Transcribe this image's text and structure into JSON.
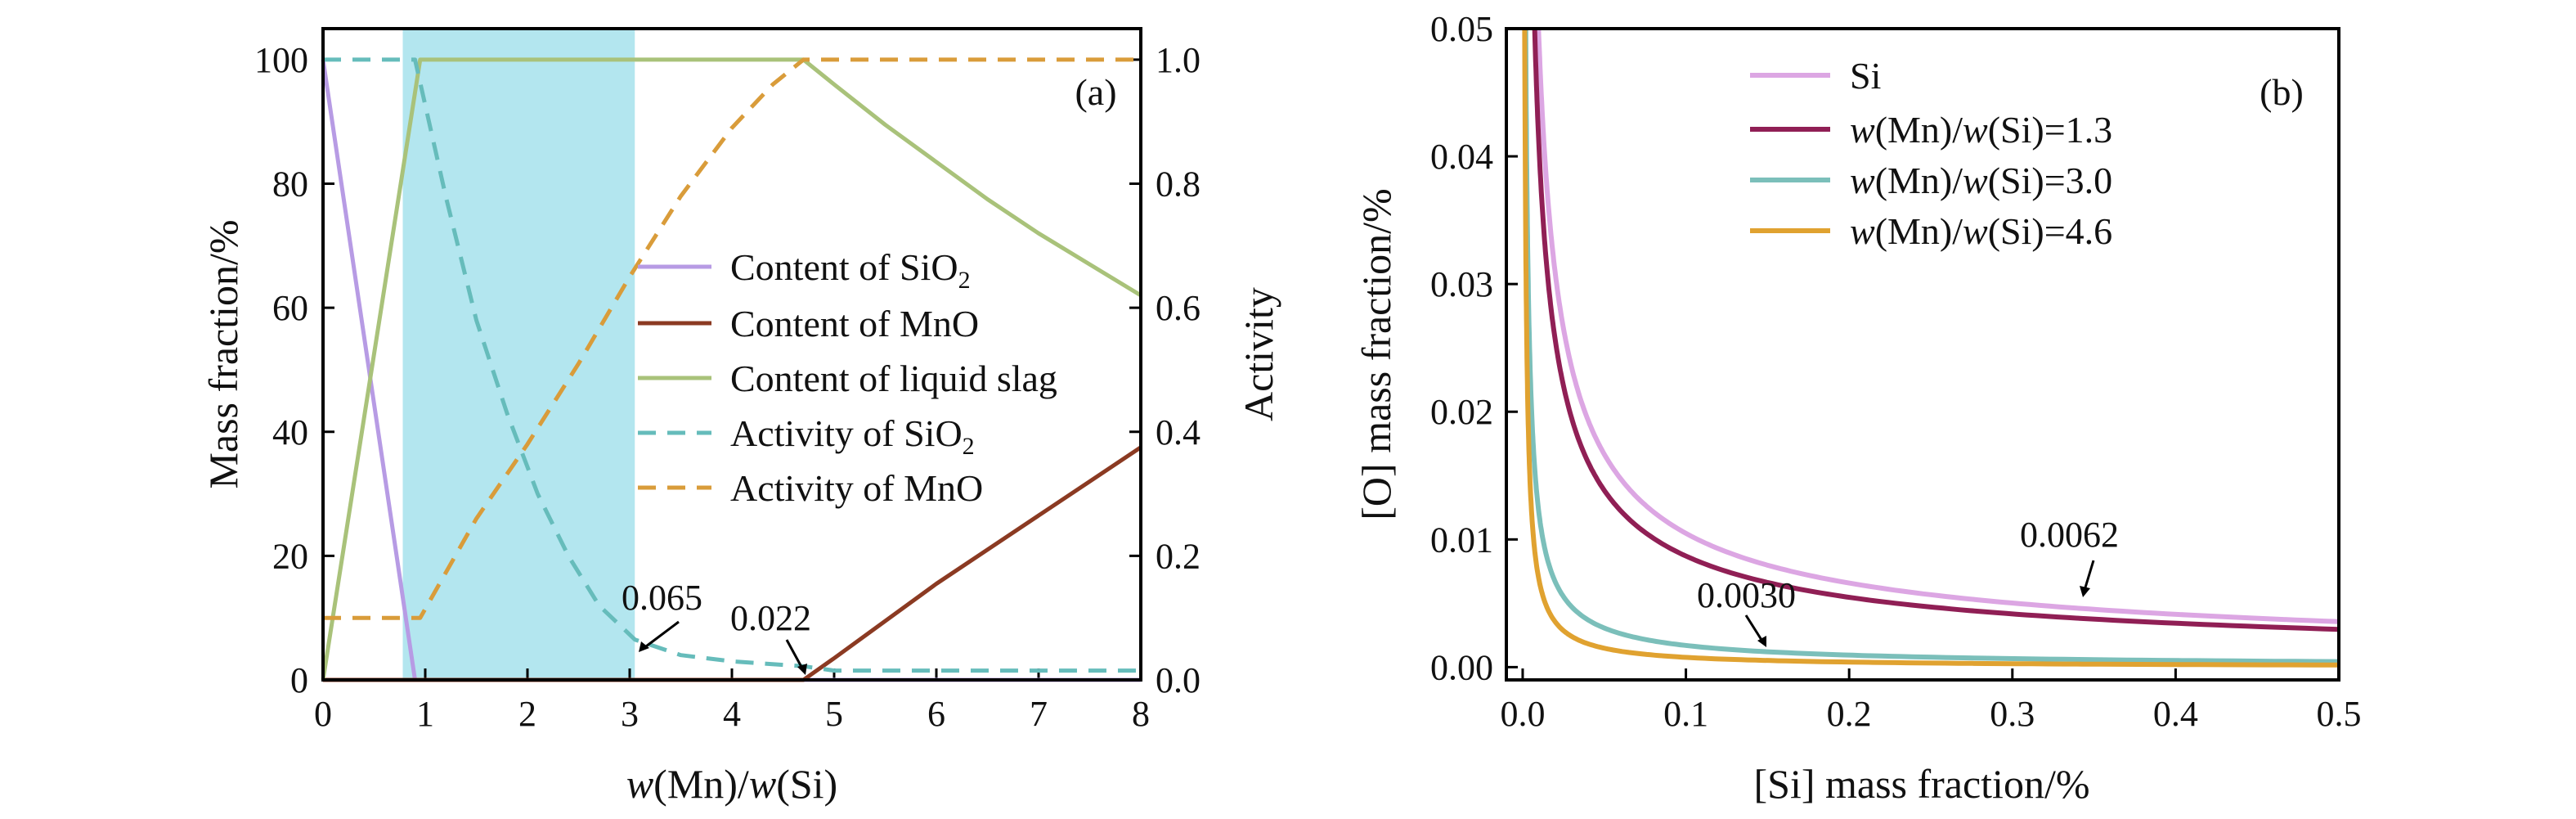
{
  "chart_data": [
    {
      "panel": "(a)",
      "type": "line",
      "xlabel": "w(Mn)/w(Si)",
      "ylabel": "Mass fraction/%",
      "y2label": "Activity",
      "xlim": [
        0,
        8
      ],
      "ylim": [
        0,
        105
      ],
      "y2lim": [
        0,
        1.05
      ],
      "xticks": [
        "0",
        "1",
        "2",
        "3",
        "4",
        "5",
        "6",
        "7",
        "8"
      ],
      "yticks": [
        "0",
        "20",
        "40",
        "60",
        "80",
        "100"
      ],
      "y2ticks": [
        "0.0",
        "0.2",
        "0.4",
        "0.6",
        "0.8",
        "1.0"
      ],
      "shaded_region": {
        "x0": 0.78,
        "x1": 3.05,
        "color": "#b3e6ef"
      },
      "legend_position": "center-right",
      "series": [
        {
          "name": "Content of SiO2",
          "axis": "left",
          "style": "solid",
          "color": "#b79be4",
          "x": [
            0,
            0.9,
            8
          ],
          "y": [
            100,
            0,
            0
          ]
        },
        {
          "name": "Content of MnO",
          "axis": "left",
          "style": "solid",
          "color": "#8b3a22",
          "x": [
            0,
            4.7,
            5,
            5.5,
            6,
            6.5,
            7,
            7.5,
            8
          ],
          "y": [
            0,
            0,
            3.5,
            9.5,
            15.5,
            21,
            26.5,
            32,
            37.5
          ]
        },
        {
          "name": "Content of liquid slag",
          "axis": "left",
          "style": "solid",
          "color": "#a9c27a",
          "x": [
            0,
            0.95,
            4.7,
            5,
            5.5,
            6,
            6.5,
            7,
            7.5,
            8
          ],
          "y": [
            0,
            100,
            100,
            96,
            89.5,
            83.5,
            77.5,
            72,
            67,
            62
          ]
        },
        {
          "name": "Activity of SiO2",
          "axis": "right",
          "style": "dashed",
          "color": "#66bcbb",
          "x": [
            0,
            0.9,
            1.2,
            1.5,
            1.8,
            2.1,
            2.4,
            2.7,
            3.05,
            3.5,
            4,
            4.7,
            5,
            8
          ],
          "y": [
            1.0,
            1.0,
            0.78,
            0.58,
            0.43,
            0.3,
            0.2,
            0.12,
            0.065,
            0.04,
            0.03,
            0.022,
            0.015,
            0.015
          ]
        },
        {
          "name": "Activity of MnO",
          "axis": "right",
          "style": "dashed",
          "color": "#d99c3a",
          "x": [
            0,
            0.95,
            1.5,
            2,
            2.5,
            3,
            3.5,
            4,
            4.4,
            4.7,
            8
          ],
          "y": [
            0.1,
            0.1,
            0.26,
            0.38,
            0.51,
            0.65,
            0.78,
            0.89,
            0.96,
            1.0,
            1.0
          ]
        }
      ],
      "annotations": [
        {
          "text": "0.065",
          "x": 3.05,
          "y": 0.065
        },
        {
          "text": "0.022",
          "x": 4.7,
          "y": 0.022
        }
      ]
    },
    {
      "panel": "(b)",
      "type": "line",
      "xlabel": "[Si] mass fraction/%",
      "ylabel": "[O] mass fraction/%",
      "xlim": [
        -0.01,
        0.5
      ],
      "ylim": [
        -0.001,
        0.05
      ],
      "xticks": [
        "0.0",
        "0.1",
        "0.2",
        "0.3",
        "0.4",
        "0.5"
      ],
      "yticks": [
        "0.00",
        "0.01",
        "0.02",
        "0.03",
        "0.04",
        "0.05"
      ],
      "legend_position": "top-center",
      "series": [
        {
          "name": "Si",
          "color": "#dca6e3",
          "k": 0.00224,
          "p": 0.67,
          "xmin": 0.009,
          "xmax": 0.5
        },
        {
          "name": "w(Mn)/w(Si)=1.3",
          "color": "#901f55",
          "k": 0.00186,
          "p": 0.67,
          "xmin": 0.006,
          "xmax": 0.5
        },
        {
          "name": "w(Mn)/w(Si)=3.0",
          "color": "#7bbfba",
          "k": 0.00024,
          "p": 0.85,
          "xmin": 0.0012,
          "xmax": 0.5
        },
        {
          "name": "w(Mn)/w(Si)=4.6",
          "color": "#e0a230",
          "k": 8.6e-05,
          "p": 0.95,
          "xmin": 0.0005,
          "xmax": 0.5
        }
      ],
      "annotations": [
        {
          "text": "0.0062",
          "x": 0.35,
          "y": 0.0062
        },
        {
          "text": "0.0030",
          "x": 0.15,
          "y": 0.003
        }
      ]
    }
  ]
}
